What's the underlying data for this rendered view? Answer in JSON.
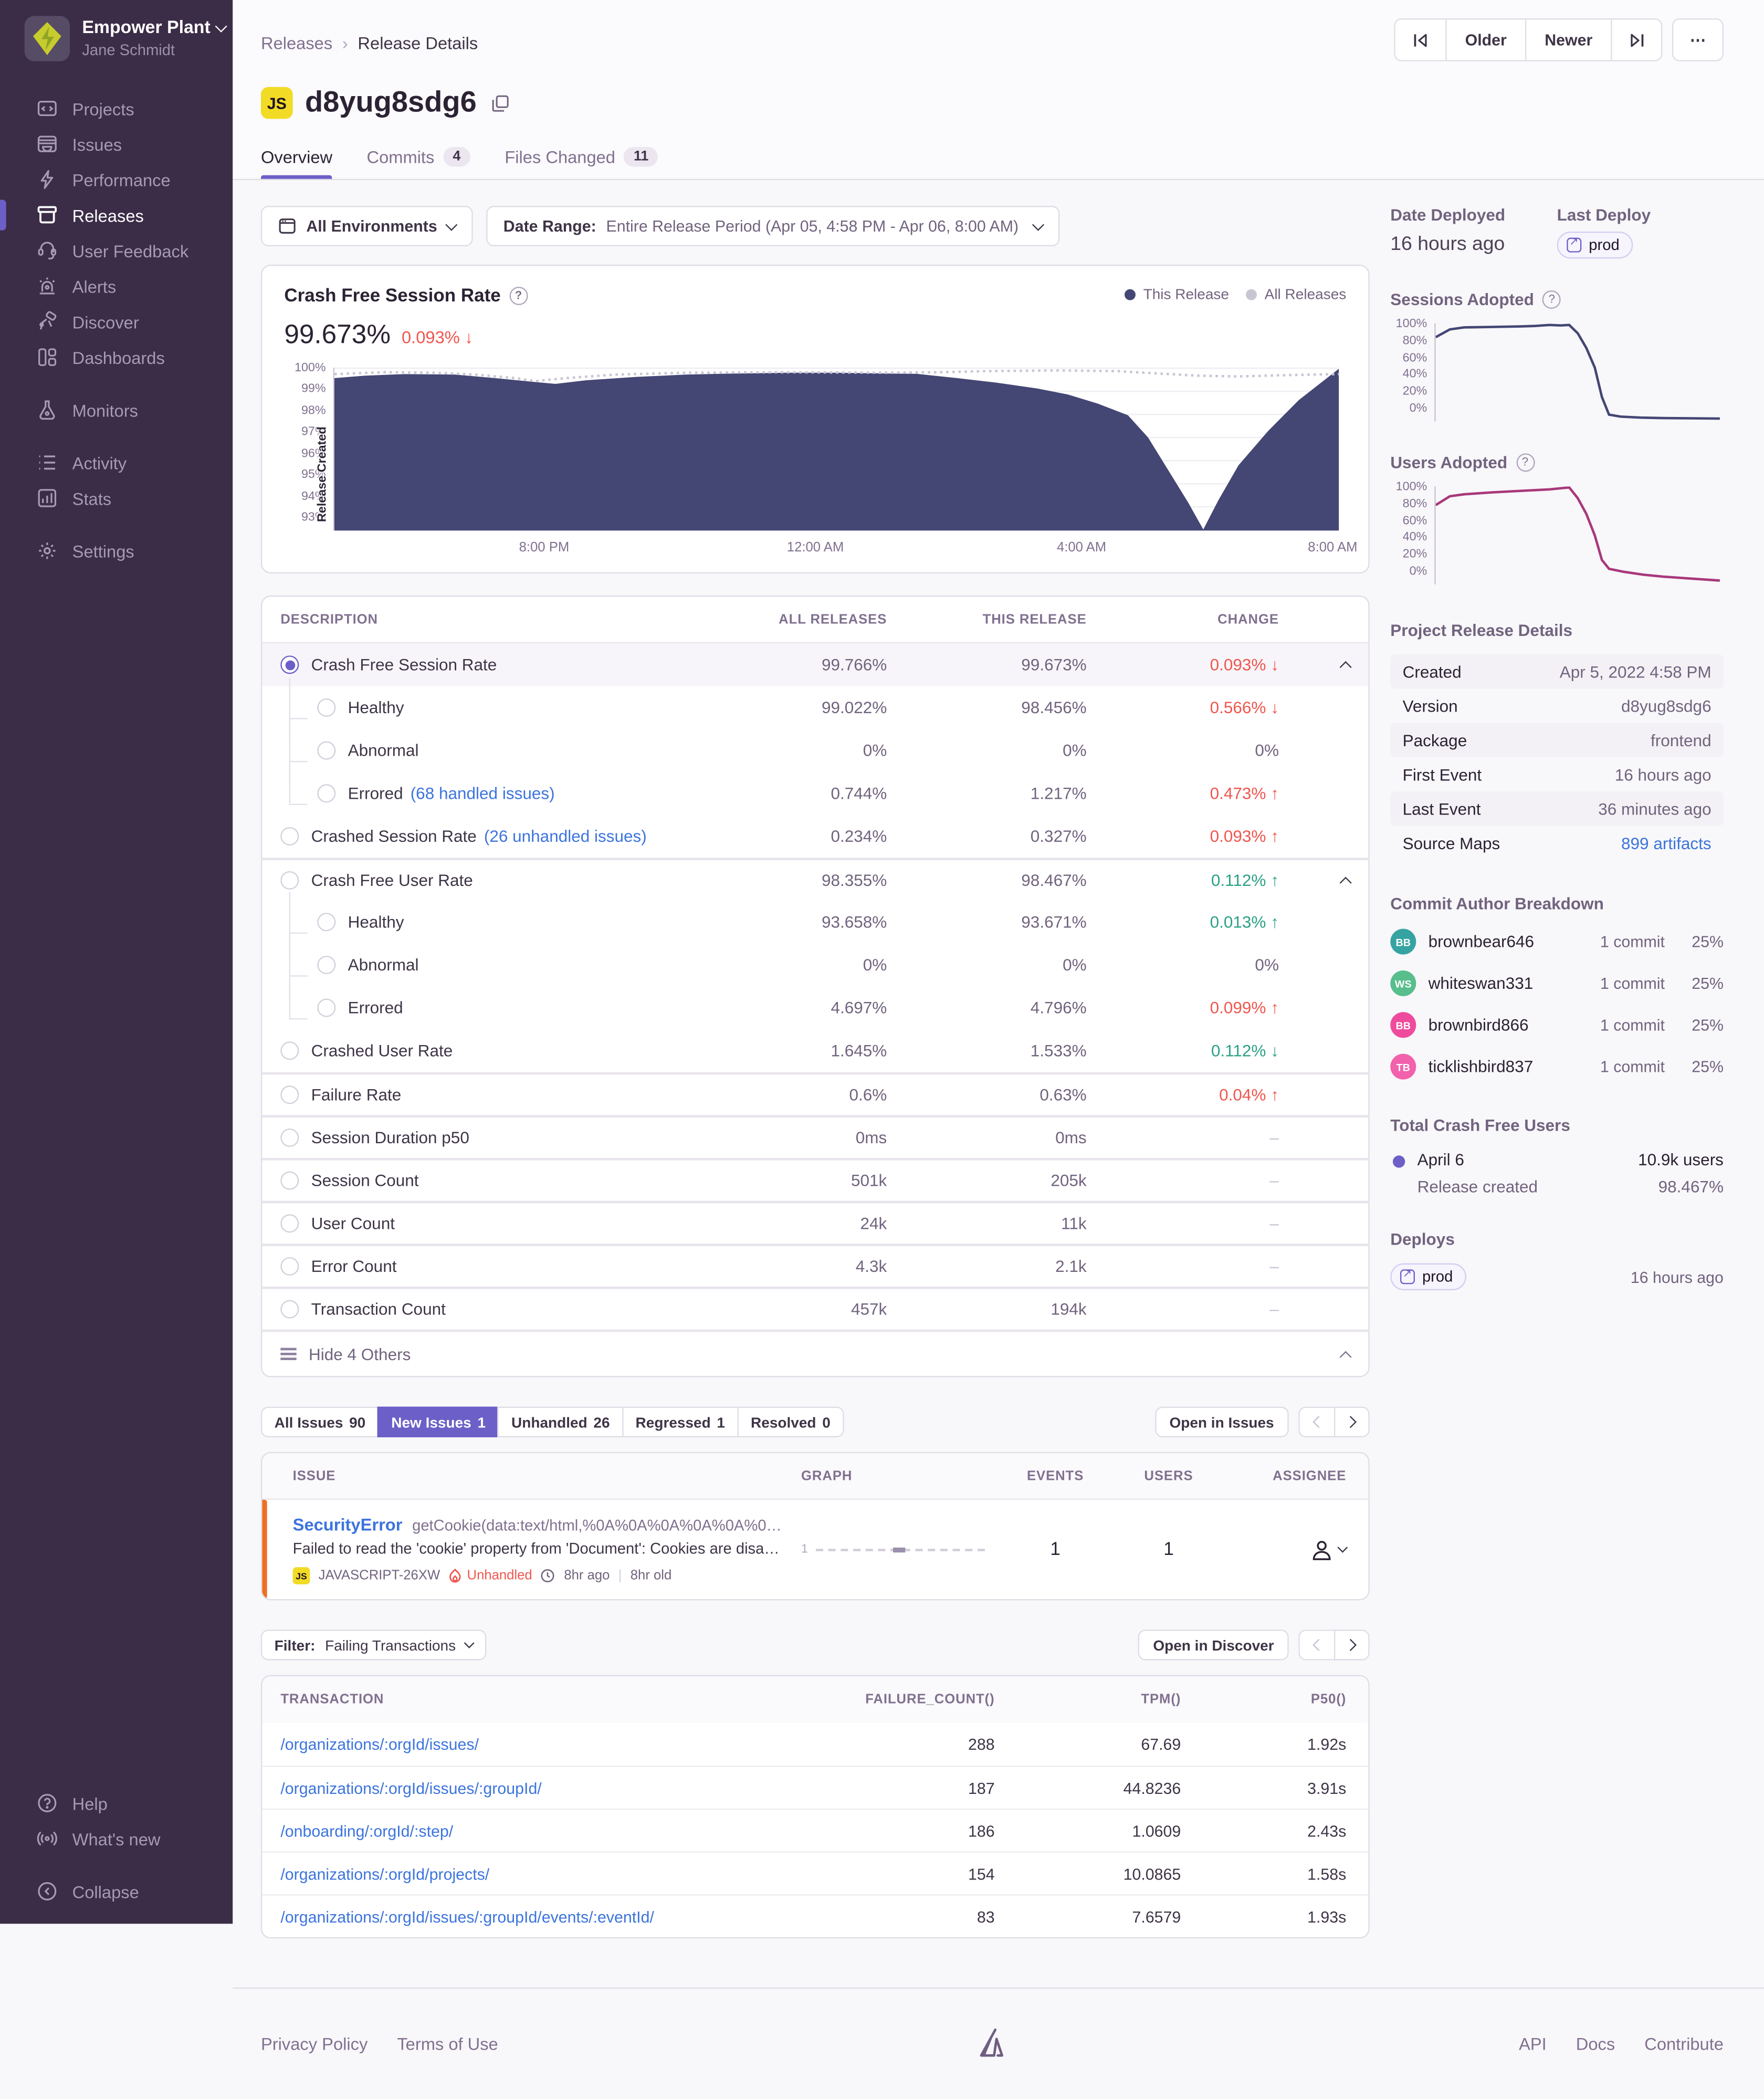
{
  "colors": {
    "accent": "#6C5FC7",
    "chart_navy": "#444674",
    "chart_all_releases": "#C9C6D4",
    "chart_magenta": "#A8387A",
    "red": "#F0564F",
    "green": "#2BA185",
    "link_blue": "#3C74DD",
    "level_orange": "#EE6F22",
    "js_yellow": "#F2DB24",
    "sidebar_bg": "#3B2C47"
  },
  "sidebar": {
    "org_name": "Empower Plant",
    "user_name": "Jane Schmidt",
    "items": [
      {
        "label": "Projects"
      },
      {
        "label": "Issues"
      },
      {
        "label": "Performance"
      },
      {
        "label": "Releases"
      },
      {
        "label": "User Feedback"
      },
      {
        "label": "Alerts"
      },
      {
        "label": "Discover"
      },
      {
        "label": "Dashboards"
      },
      {
        "label": "Monitors"
      },
      {
        "label": "Activity"
      },
      {
        "label": "Stats"
      },
      {
        "label": "Settings"
      }
    ],
    "footer_items": [
      {
        "label": "Help"
      },
      {
        "label": "What's new"
      },
      {
        "label": "Collapse"
      }
    ]
  },
  "header": {
    "breadcrumb": [
      "Releases",
      "Release Details"
    ],
    "pager": {
      "older": "Older",
      "newer": "Newer",
      "more": "⋯"
    },
    "platform_badge": "JS",
    "title": "d8yug8sdg6",
    "tabs": [
      {
        "label": "Overview"
      },
      {
        "label": "Commits",
        "badge": "4"
      },
      {
        "label": "Files Changed",
        "badge": "11"
      }
    ]
  },
  "filters": {
    "environment": "All Environments",
    "date_range_label": "Date Range:",
    "date_range_value": "Entire Release Period (Apr 05, 4:58 PM - Apr 06, 8:00 AM)"
  },
  "session_card": {
    "title": "Crash Free Session Rate",
    "value": "99.673%",
    "change": "0.093% ↓",
    "legend": [
      {
        "label": "This Release"
      },
      {
        "label": "All Releases"
      }
    ],
    "y_labels": [
      "100%",
      "99%",
      "98%",
      "97%",
      "96%",
      "95%",
      "94%",
      "93%"
    ],
    "x_labels": [
      "8:00 PM",
      "12:00 AM",
      "4:00 AM",
      "8:00 AM"
    ],
    "annotation": "Release Created"
  },
  "chart_data": [
    {
      "name": "crash_free_session_rate",
      "type": "area",
      "title": "Crash Free Session Rate",
      "ylabel": "%",
      "ylim": [
        93,
        100
      ],
      "x_labels": [
        "8:00 PM",
        "12:00 AM",
        "4:00 AM",
        "8:00 AM"
      ],
      "grid": 8,
      "legend_position": "top-right",
      "series": [
        {
          "name": "This Release",
          "style": "area",
          "color": "#444674",
          "points": [
            [
              0,
              99.55
            ],
            [
              0.03,
              99.65
            ],
            [
              0.07,
              99.72
            ],
            [
              0.12,
              99.7
            ],
            [
              0.16,
              99.55
            ],
            [
              0.19,
              99.42
            ],
            [
              0.22,
              99.3
            ],
            [
              0.25,
              99.45
            ],
            [
              0.3,
              99.6
            ],
            [
              0.35,
              99.7
            ],
            [
              0.4,
              99.75
            ],
            [
              0.45,
              99.78
            ],
            [
              0.5,
              99.78
            ],
            [
              0.55,
              99.75
            ],
            [
              0.58,
              99.73
            ],
            [
              0.62,
              99.55
            ],
            [
              0.66,
              99.35
            ],
            [
              0.7,
              99.1
            ],
            [
              0.73,
              98.85
            ],
            [
              0.76,
              98.45
            ],
            [
              0.79,
              97.95
            ],
            [
              0.81,
              97.0
            ],
            [
              0.83,
              95.6
            ],
            [
              0.85,
              94.2
            ],
            [
              0.865,
              93.05
            ],
            [
              0.88,
              94.3
            ],
            [
              0.9,
              95.8
            ],
            [
              0.93,
              97.3
            ],
            [
              0.96,
              98.6
            ],
            [
              1,
              99.95
            ]
          ]
        },
        {
          "name": "All Releases",
          "style": "dashed-line",
          "color": "#C9C6D4",
          "points": [
            [
              0,
              99.72
            ],
            [
              0.05,
              99.8
            ],
            [
              0.1,
              99.78
            ],
            [
              0.14,
              99.7
            ],
            [
              0.18,
              99.55
            ],
            [
              0.2,
              99.42
            ],
            [
              0.23,
              99.55
            ],
            [
              0.28,
              99.7
            ],
            [
              0.35,
              99.78
            ],
            [
              0.45,
              99.8
            ],
            [
              0.55,
              99.78
            ],
            [
              0.6,
              99.8
            ],
            [
              0.65,
              99.85
            ],
            [
              0.72,
              99.88
            ],
            [
              0.78,
              99.85
            ],
            [
              0.82,
              99.75
            ],
            [
              0.86,
              99.65
            ],
            [
              0.9,
              99.62
            ],
            [
              0.95,
              99.68
            ],
            [
              1,
              99.72
            ]
          ]
        }
      ]
    },
    {
      "name": "sessions_adopted",
      "type": "line",
      "title": "Sessions Adopted",
      "ylim": [
        0,
        100
      ],
      "y_labels": [
        "100%",
        "80%",
        "60%",
        "40%",
        "20%",
        "0%"
      ],
      "series": [
        {
          "name": "Sessions Adopted",
          "style": "line",
          "color": "#444674",
          "points": [
            [
              0,
              86
            ],
            [
              0.05,
              94
            ],
            [
              0.1,
              96
            ],
            [
              0.2,
              96.5
            ],
            [
              0.3,
              97
            ],
            [
              0.35,
              97.5
            ],
            [
              0.4,
              98.5
            ],
            [
              0.44,
              98
            ],
            [
              0.47,
              98.5
            ],
            [
              0.5,
              90
            ],
            [
              0.53,
              75
            ],
            [
              0.56,
              55
            ],
            [
              0.585,
              25
            ],
            [
              0.61,
              7
            ],
            [
              0.65,
              5
            ],
            [
              0.72,
              4
            ],
            [
              0.8,
              3.5
            ],
            [
              0.9,
              3.2
            ],
            [
              1,
              3
            ]
          ]
        }
      ]
    },
    {
      "name": "users_adopted",
      "type": "line",
      "title": "Users Adopted",
      "ylim": [
        0,
        100
      ],
      "y_labels": [
        "100%",
        "80%",
        "60%",
        "40%",
        "20%",
        "0%"
      ],
      "series": [
        {
          "name": "Users Adopted",
          "style": "line",
          "color": "#A8387A",
          "points": [
            [
              0,
              81
            ],
            [
              0.05,
              90
            ],
            [
              0.1,
              92
            ],
            [
              0.2,
              94
            ],
            [
              0.3,
              95.5
            ],
            [
              0.4,
              97
            ],
            [
              0.47,
              99
            ],
            [
              0.5,
              88
            ],
            [
              0.53,
              72
            ],
            [
              0.56,
              50
            ],
            [
              0.585,
              25
            ],
            [
              0.61,
              16
            ],
            [
              0.66,
              13
            ],
            [
              0.73,
              10
            ],
            [
              0.8,
              8
            ],
            [
              0.9,
              6
            ],
            [
              1,
              4
            ]
          ]
        }
      ]
    }
  ],
  "metrics": {
    "columns": [
      "DESCRIPTION",
      "ALL RELEASES",
      "THIS RELEASE",
      "CHANGE"
    ],
    "rows": [
      {
        "desc": "Crash Free Session Rate",
        "all": "99.766%",
        "this": "99.673%",
        "change": "0.093%",
        "dir": "↓"
      },
      {
        "desc": "Healthy",
        "all": "99.022%",
        "this": "98.456%",
        "change": "0.566%",
        "dir": "↓"
      },
      {
        "desc": "Abnormal",
        "all": "0%",
        "this": "0%",
        "change": "0%",
        "dir": ""
      },
      {
        "desc": "Errored",
        "link": "(68 handled issues)",
        "all": "0.744%",
        "this": "1.217%",
        "change": "0.473%",
        "dir": "↑"
      },
      {
        "desc": "Crashed Session Rate",
        "link": "(26 unhandled issues)",
        "all": "0.234%",
        "this": "0.327%",
        "change": "0.093%",
        "dir": "↑"
      },
      {
        "desc": "Crash Free User Rate",
        "all": "98.355%",
        "this": "98.467%",
        "change": "0.112%",
        "dir": "↑"
      },
      {
        "desc": "Healthy",
        "all": "93.658%",
        "this": "93.671%",
        "change": "0.013%",
        "dir": "↑"
      },
      {
        "desc": "Abnormal",
        "all": "0%",
        "this": "0%",
        "change": "0%",
        "dir": ""
      },
      {
        "desc": "Errored",
        "all": "4.697%",
        "this": "4.796%",
        "change": "0.099%",
        "dir": "↑"
      },
      {
        "desc": "Crashed User Rate",
        "all": "1.645%",
        "this": "1.533%",
        "change": "0.112%",
        "dir": "↓"
      },
      {
        "desc": "Failure Rate",
        "all": "0.6%",
        "this": "0.63%",
        "change": "0.04%",
        "dir": "↑"
      },
      {
        "desc": "Session Duration p50",
        "all": "0ms",
        "this": "0ms",
        "change": "–",
        "dir": ""
      },
      {
        "desc": "Session Count",
        "all": "501k",
        "this": "205k",
        "change": "–",
        "dir": ""
      },
      {
        "desc": "User Count",
        "all": "24k",
        "this": "11k",
        "change": "–",
        "dir": ""
      },
      {
        "desc": "Error Count",
        "all": "4.3k",
        "this": "2.1k",
        "change": "–",
        "dir": ""
      },
      {
        "desc": "Transaction Count",
        "all": "457k",
        "this": "194k",
        "change": "–",
        "dir": ""
      }
    ],
    "footer": "Hide 4 Others"
  },
  "issues": {
    "tabs": [
      {
        "label": "All Issues",
        "count": "90"
      },
      {
        "label": "New Issues",
        "count": "1"
      },
      {
        "label": "Unhandled",
        "count": "26"
      },
      {
        "label": "Regressed",
        "count": "1"
      },
      {
        "label": "Resolved",
        "count": "0"
      }
    ],
    "open_button": "Open in Issues",
    "columns": [
      "ISSUE",
      "GRAPH",
      "EVENTS",
      "USERS",
      "ASSIGNEE"
    ],
    "row": {
      "title": "SecurityError",
      "culprit": "getCookie(data:text/html,%0A%0A%0A%0A%0A%0…",
      "message": "Failed to read the 'cookie' property from 'Document': Cookies are disa…",
      "platform": "JS",
      "short_id": "JAVASCRIPT-26XW",
      "unhandled": "Unhandled",
      "age": "8hr ago",
      "old": "8hr old",
      "graph_label": "1",
      "events": "1",
      "users": "1"
    }
  },
  "transactions": {
    "filter_label": "Filter:",
    "filter_value": "Failing Transactions",
    "open_button": "Open in Discover",
    "columns": [
      "TRANSACTION",
      "FAILURE_COUNT()",
      "TPM()",
      "P50()"
    ],
    "rows": [
      {
        "path": "/organizations/:orgId/issues/",
        "failures": "288",
        "tpm": "67.69",
        "p50": "1.92s"
      },
      {
        "path": "/organizations/:orgId/issues/:groupId/",
        "failures": "187",
        "tpm": "44.8236",
        "p50": "3.91s"
      },
      {
        "path": "/onboarding/:orgId/:step/",
        "failures": "186",
        "tpm": "1.0609",
        "p50": "2.43s"
      },
      {
        "path": "/organizations/:orgId/projects/",
        "failures": "154",
        "tpm": "10.0865",
        "p50": "1.58s"
      },
      {
        "path": "/organizations/:orgId/issues/:groupId/events/:eventId/",
        "failures": "83",
        "tpm": "7.6579",
        "p50": "1.93s"
      }
    ]
  },
  "right_panel": {
    "date_deployed_label": "Date Deployed",
    "date_deployed": "16 hours ago",
    "last_deploy_label": "Last Deploy",
    "last_deploy_env": "prod",
    "sessions_adopted_label": "Sessions Adopted",
    "users_adopted_label": "Users Adopted",
    "adoption_y_labels": [
      "100%",
      "80%",
      "60%",
      "40%",
      "20%",
      "0%"
    ],
    "details_title": "Project Release Details",
    "details": [
      [
        "Created",
        "Apr 5, 2022 4:58 PM"
      ],
      [
        "Version",
        "d8yug8sdg6"
      ],
      [
        "Package",
        "frontend"
      ],
      [
        "First Event",
        "16 hours ago"
      ],
      [
        "Last Event",
        "36 minutes ago"
      ],
      [
        "Source Maps",
        "899 artifacts"
      ]
    ],
    "commit_title": "Commit Author Breakdown",
    "authors": [
      {
        "initials": "BB",
        "name": "brownbear646",
        "commits": "1 commit",
        "pct": "25%",
        "color": "#36A3A3"
      },
      {
        "initials": "WS",
        "name": "whiteswan331",
        "commits": "1 commit",
        "pct": "25%",
        "color": "#57BE8C"
      },
      {
        "initials": "BB",
        "name": "brownbird866",
        "commits": "1 commit",
        "pct": "25%",
        "color": "#EF4B9C"
      },
      {
        "initials": "TB",
        "name": "ticklishbird837",
        "commits": "1 commit",
        "pct": "25%",
        "color": "#F161AC"
      }
    ],
    "tcfu_title": "Total Crash Free Users",
    "tcfu_date": "April 6",
    "tcfu_users": "10.9k users",
    "tcfu_sub": "Release created",
    "tcfu_pct": "98.467%",
    "deploys_title": "Deploys",
    "deploy_env": "prod",
    "deploy_time": "16 hours ago"
  },
  "page_footer": {
    "links_left": [
      "Privacy Policy",
      "Terms of Use"
    ],
    "links_right": [
      "API",
      "Docs",
      "Contribute"
    ]
  }
}
